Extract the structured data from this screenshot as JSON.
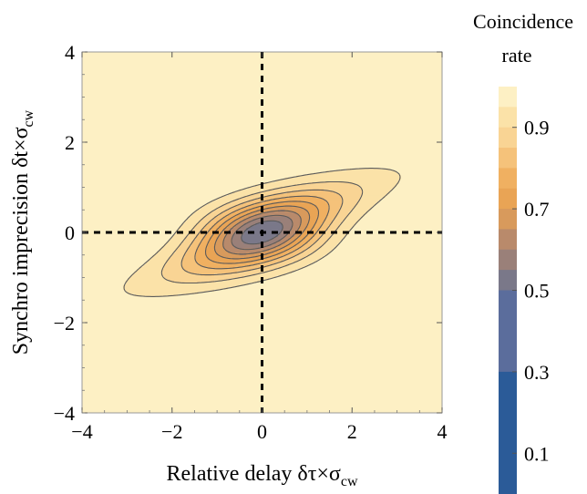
{
  "chart_data": {
    "type": "contour",
    "xlabel": "Relative delay δτ×σ",
    "xlabel_sub": "cw",
    "ylabel": "Synchro imprecision δt×σ",
    "ylabel_sub": "cw",
    "xlim": [
      -4,
      4
    ],
    "ylim": [
      -4,
      4
    ],
    "x_ticks": [
      -4,
      -2,
      0,
      2,
      4
    ],
    "y_ticks": [
      -4,
      -2,
      0,
      2,
      4
    ],
    "x_tick_labels": [
      "−4",
      "−2",
      "0",
      "2",
      "4"
    ],
    "y_tick_labels": [
      "−4",
      "−2",
      "0",
      "2",
      "4"
    ],
    "reference_lines": {
      "x": 0,
      "y": 0,
      "style": "dashed"
    },
    "function": "1 - 0.5*exp(-0.5*((dt - 0.25*dtau)^2/0.25 + dtau^2/(1 + dt^2)))",
    "contour_levels": [
      0.5,
      0.55,
      0.6,
      0.65,
      0.7,
      0.75,
      0.8,
      0.85,
      0.9,
      0.95
    ],
    "legend": {
      "title_line1": "Coincidence",
      "title_line2": "rate",
      "tick_values": [
        0.9,
        0.7,
        0.5,
        0.3,
        0.1
      ],
      "tick_labels": [
        "0.9",
        "0.7",
        "0.5",
        "0.3",
        "0.1"
      ],
      "range": [
        0.0,
        1.0
      ],
      "bands": [
        {
          "from": 0.95,
          "to": 1.0,
          "color": "#fdf0c4"
        },
        {
          "from": 0.9,
          "to": 0.95,
          "color": "#fbe2a8"
        },
        {
          "from": 0.85,
          "to": 0.9,
          "color": "#f9d494"
        },
        {
          "from": 0.8,
          "to": 0.85,
          "color": "#f5c27a"
        },
        {
          "from": 0.75,
          "to": 0.8,
          "color": "#f0b061"
        },
        {
          "from": 0.7,
          "to": 0.75,
          "color": "#e9a455"
        },
        {
          "from": 0.65,
          "to": 0.7,
          "color": "#d89a5c"
        },
        {
          "from": 0.6,
          "to": 0.65,
          "color": "#b98a6b"
        },
        {
          "from": 0.55,
          "to": 0.6,
          "color": "#9a8079"
        },
        {
          "from": 0.5,
          "to": 0.55,
          "color": "#7a7889"
        },
        {
          "from": 0.3,
          "to": 0.5,
          "color": "#5b6d9c"
        },
        {
          "from": 0.0,
          "to": 0.3,
          "color": "#2b5b98"
        }
      ]
    },
    "colors": {
      "low": "#1f4f8f",
      "mid": "#e39a4a",
      "high": "#fdf0c4",
      "contour_line": "#5a5a5a",
      "dash_line": "#000000"
    }
  }
}
